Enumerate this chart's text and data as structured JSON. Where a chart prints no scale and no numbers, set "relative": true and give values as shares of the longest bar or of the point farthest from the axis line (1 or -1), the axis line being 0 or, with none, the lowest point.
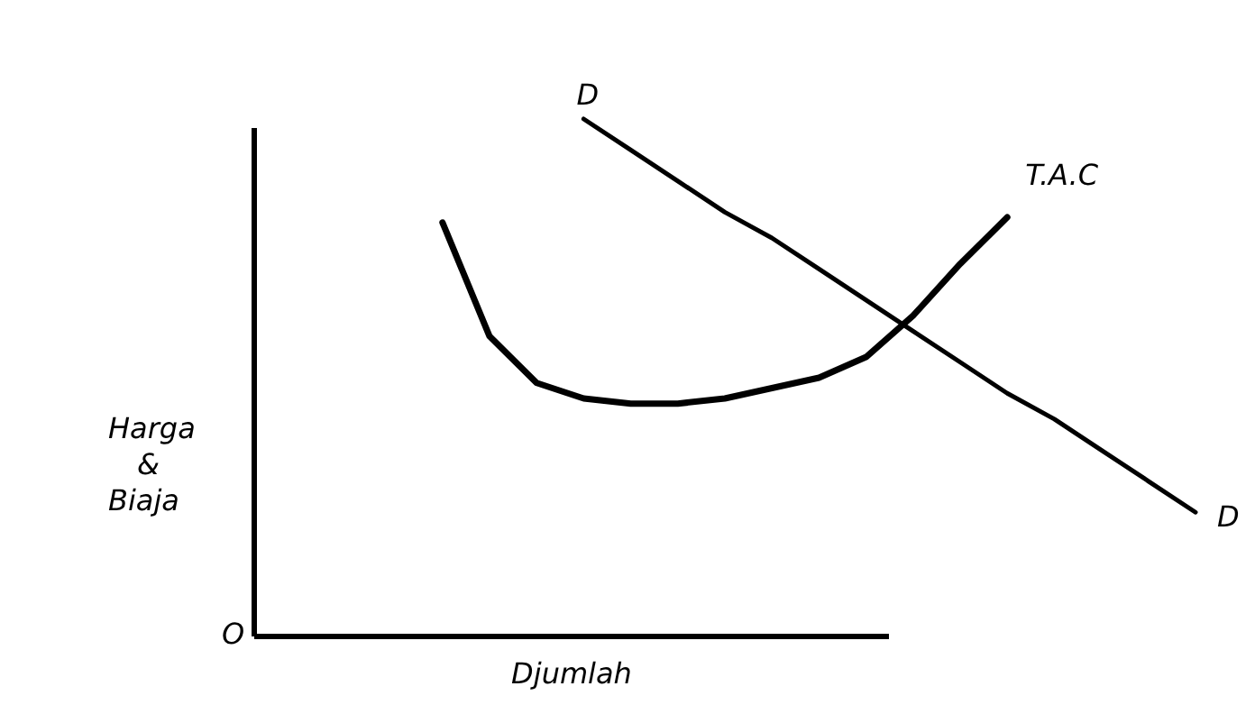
{
  "chart_data": {
    "type": "line",
    "relative": true,
    "xlabel": "Djumlah",
    "ylabel": "Harga\n&\nBiaja",
    "grid": false,
    "legend": false,
    "marker": "none",
    "line_style": "solid",
    "annotations": [
      "O",
      "D"
    ],
    "categories": [
      null,
      null,
      null,
      null,
      null,
      null,
      null,
      null,
      null,
      null,
      null,
      null,
      null,
      null,
      null,
      null,
      null,
      null,
      null,
      null,
      null
    ],
    "series": [
      {
        "name": "T.A.C",
        "color": "#000000",
        "values": [
          null,
          null,
          null,
          null,
          0.8,
          0.58,
          0.49,
          0.46,
          0.45,
          0.45,
          0.46,
          0.48,
          0.5,
          0.54,
          0.62,
          0.72,
          0.81,
          null,
          null,
          null,
          null
        ]
      },
      {
        "name": "D",
        "color": "#000000",
        "values": [
          null,
          null,
          null,
          null,
          null,
          null,
          null,
          1.0,
          0.94,
          0.88,
          0.82,
          0.77,
          0.71,
          0.65,
          0.59,
          0.53,
          0.47,
          0.42,
          0.36,
          0.3,
          0.24
        ]
      }
    ]
  }
}
